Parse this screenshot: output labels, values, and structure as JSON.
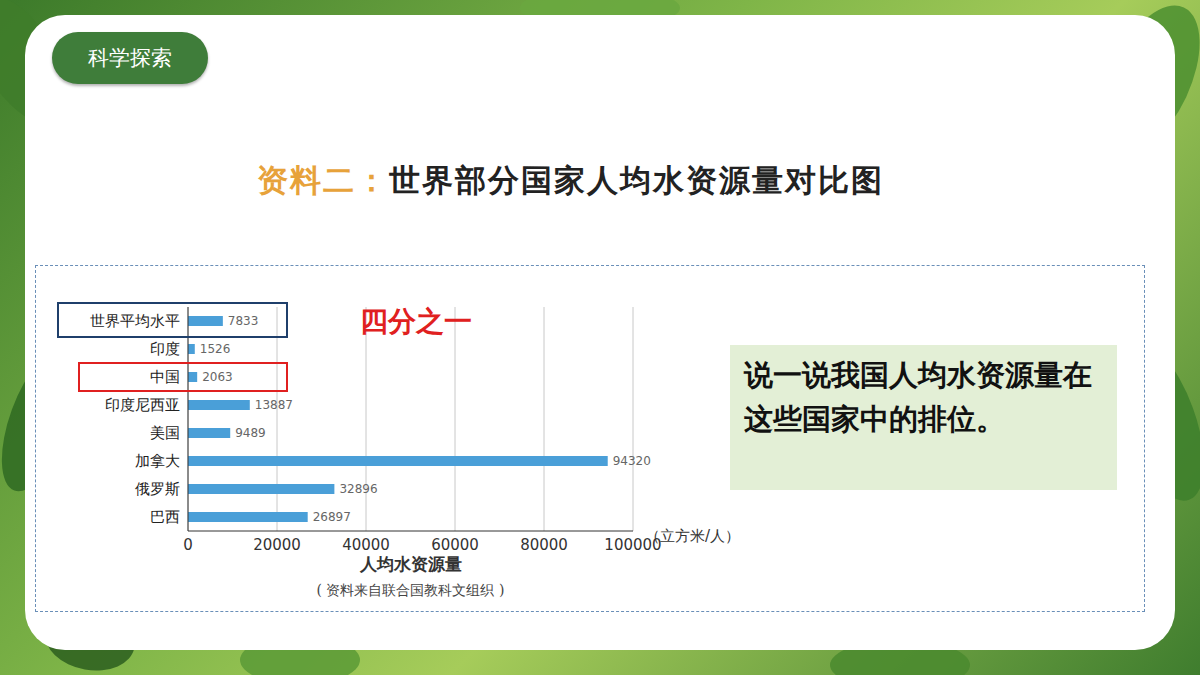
{
  "slide": {
    "tag": "科学探索",
    "label": "资料二：",
    "question": "说一说我国人均水资源量在这些国家中的排位。",
    "source": "( 资料来自联合国教科文组织 )"
  },
  "chart_data": {
    "type": "bar",
    "orientation": "horizontal",
    "title": "世界部分国家人均水资源量对比图",
    "categories": [
      "世界平均水平",
      "印度",
      "中国",
      "印度尼西亚",
      "美国",
      "加拿大",
      "俄罗斯",
      "巴西"
    ],
    "values": [
      7833,
      1526,
      2063,
      13887,
      9489,
      94320,
      32896,
      26897
    ],
    "color": "#4a9fd8",
    "xlim": [
      0,
      100000
    ],
    "xticks": [
      0,
      20000,
      40000,
      60000,
      80000,
      100000
    ],
    "x_label": "人均水资源量",
    "x_unit": "（立方米/人）",
    "annotations": [
      "四分之一"
    ],
    "grid": true,
    "data_labels": true
  }
}
